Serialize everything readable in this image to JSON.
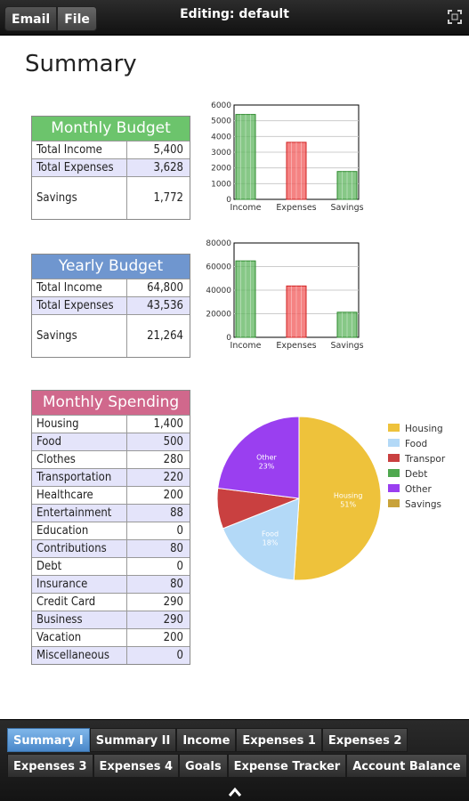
{
  "topbar": {
    "buttons": [
      "Email",
      "File"
    ],
    "title": "Editing: default"
  },
  "page_title": "Summary",
  "monthly_budget": {
    "title": "Monthly Budget",
    "rows": [
      {
        "label": "Total Income",
        "value": "5,400"
      },
      {
        "label": "Total Expenses",
        "value": "3,628"
      },
      {
        "label": "Savings",
        "value": "1,772"
      }
    ]
  },
  "yearly_budget": {
    "title": "Yearly Budget",
    "rows": [
      {
        "label": "Total Income",
        "value": "64,800"
      },
      {
        "label": "Total Expenses",
        "value": "43,536"
      },
      {
        "label": "Savings",
        "value": "21,264"
      }
    ]
  },
  "monthly_spending": {
    "title": "Monthly Spending",
    "rows": [
      {
        "label": "Housing",
        "value": "1,400"
      },
      {
        "label": "Food",
        "value": "500"
      },
      {
        "label": "Clothes",
        "value": "280"
      },
      {
        "label": "Transportation",
        "value": "220"
      },
      {
        "label": "Healthcare",
        "value": "200"
      },
      {
        "label": "Entertainment",
        "value": "88"
      },
      {
        "label": "Education",
        "value": "0"
      },
      {
        "label": "Contributions",
        "value": "80"
      },
      {
        "label": "Debt",
        "value": "0"
      },
      {
        "label": "Insurance",
        "value": "80"
      },
      {
        "label": "Credit Card",
        "value": "290"
      },
      {
        "label": "Business",
        "value": "290"
      },
      {
        "label": "Vacation",
        "value": "200"
      },
      {
        "label": "Miscellaneous",
        "value": "0"
      }
    ]
  },
  "chart_data": [
    {
      "type": "bar",
      "categories": [
        "Income",
        "Expenses",
        "Savings"
      ],
      "values": [
        5400,
        3628,
        1772
      ],
      "ylim": [
        0,
        6000
      ],
      "yticks": [
        0,
        1000,
        2000,
        3000,
        4000,
        5000,
        6000
      ],
      "colors": [
        "#5fb55f",
        "#f25a5a",
        "#5fb55f"
      ],
      "grid": true
    },
    {
      "type": "bar",
      "categories": [
        "Income",
        "Expenses",
        "Savings"
      ],
      "values": [
        64800,
        43536,
        21264
      ],
      "ylim": [
        0,
        80000
      ],
      "yticks": [
        0,
        20000,
        40000,
        60000,
        80000
      ],
      "colors": [
        "#5fb55f",
        "#f25a5a",
        "#5fb55f"
      ],
      "grid": true
    },
    {
      "type": "pie",
      "slices": [
        {
          "name": "Housing",
          "value": 51,
          "color": "#eec23b",
          "label": "Housing",
          "pct": "51%"
        },
        {
          "name": "Food",
          "value": 18,
          "color": "#b3d9f7",
          "label": "Food",
          "pct": "18%"
        },
        {
          "name": "Transpor",
          "value": 8,
          "color": "#c94040",
          "label": "",
          "pct": ""
        },
        {
          "name": "Debt",
          "value": 0,
          "color": "#4fa84f",
          "label": "",
          "pct": ""
        },
        {
          "name": "Other",
          "value": 23,
          "color": "#9a3ff0",
          "label": "Other",
          "pct": "23%"
        },
        {
          "name": "Savings",
          "value": 0,
          "color": "#c8a23a",
          "label": "",
          "pct": ""
        }
      ],
      "legend_position": "right"
    }
  ],
  "bottom_tabs": {
    "row1": [
      "Summary I",
      "Summary II",
      "Income",
      "Expenses 1",
      "Expenses 2"
    ],
    "row2": [
      "Expenses 3",
      "Expenses 4",
      "Goals",
      "Expense Tracker",
      "Account Balance"
    ],
    "active": "Summary I"
  }
}
